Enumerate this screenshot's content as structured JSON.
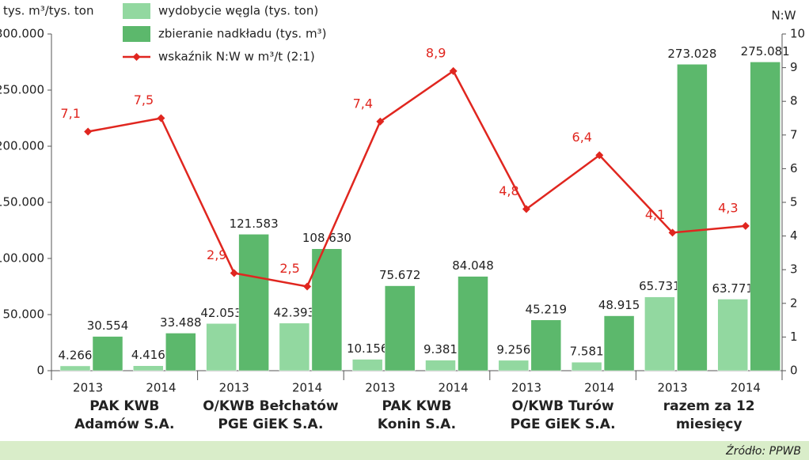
{
  "chart_data": {
    "type": "bar",
    "y_label": "tys. m³/tys. ton",
    "y2_label": "N:W",
    "source": "Źródło: PPWB",
    "categories": [
      "2013",
      "2014",
      "2013",
      "2014",
      "2013",
      "2014",
      "2013",
      "2014",
      "2013",
      "2014"
    ],
    "group_labels": [
      [
        "PAK KWB",
        "Adamów S.A."
      ],
      [
        "O/KWB Bełchatów",
        "PGE GiEK S.A."
      ],
      [
        "PAK KWB",
        "Konin S.A."
      ],
      [
        "O/KWB Turów",
        "PGE GiEK S.A."
      ],
      [
        "razem za 12",
        "miesięcy"
      ]
    ],
    "series": [
      {
        "name": "wydobycie węgla (tys. ton)",
        "color": "#92d8a0",
        "values": [
          4266,
          4416,
          42053,
          42393,
          10156,
          9381,
          9256,
          7581,
          65731,
          63771
        ],
        "value_labels": [
          "4.266",
          "4.416",
          "42.053",
          "42.393",
          "10.156",
          "9.381",
          "9.256",
          "7.581",
          "65.731",
          "63.771"
        ]
      },
      {
        "name": "zbieranie nadkładu (tys. m³)",
        "color": "#5cb86c",
        "values": [
          30554,
          33488,
          121583,
          108630,
          75672,
          84048,
          45219,
          48915,
          273028,
          275081
        ],
        "value_labels": [
          "30.554",
          "33.488",
          "121.583",
          "108.630",
          "75.672",
          "84.048",
          "45.219",
          "48.915",
          "273.028",
          "275.081"
        ]
      },
      {
        "name": "wskaźnik N:W w m³/t (2:1)",
        "color": "#e0261f",
        "type": "line",
        "axis": "y2",
        "values": [
          7.1,
          7.5,
          2.9,
          2.5,
          7.4,
          8.9,
          4.8,
          6.4,
          4.1,
          4.3
        ],
        "value_labels": [
          "7,1",
          "7,5",
          "2,9",
          "2,5",
          "7,4",
          "8,9",
          "4,8",
          "6,4",
          "4,1",
          "4,3"
        ]
      }
    ],
    "ylim": [
      0,
      300000
    ],
    "yticks": [
      0,
      {
        "value": 50000,
        "label": "50.000"
      },
      {
        "value": 100000,
        "label": "100.000"
      },
      {
        "value": 150000,
        "label": "150.000"
      },
      {
        "value": 200000,
        "label": "200.000"
      },
      {
        "value": 250000,
        "label": "250.000"
      },
      {
        "value": 300000,
        "label": "300.000"
      }
    ],
    "y2lim": [
      0,
      10
    ],
    "y2ticks": [
      0,
      1,
      2,
      3,
      4,
      5,
      6,
      7,
      8,
      9,
      10
    ]
  }
}
